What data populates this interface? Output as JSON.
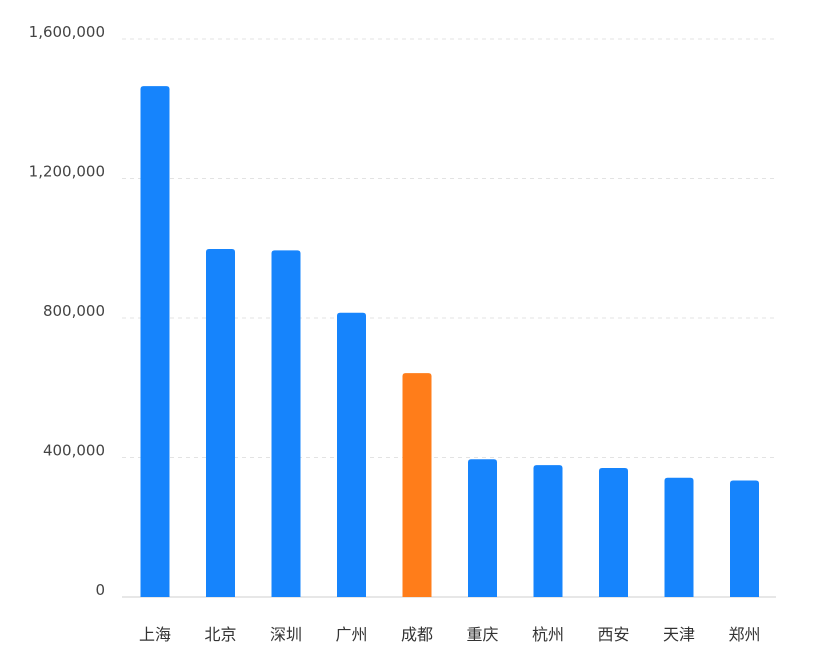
{
  "chart_data": {
    "type": "bar",
    "categories": [
      "上海",
      "北京",
      "深圳",
      "广州",
      "成都",
      "重庆",
      "杭州",
      "西安",
      "天津",
      "郑州"
    ],
    "values": [
      1465000,
      998000,
      994000,
      815000,
      642000,
      395000,
      378000,
      370000,
      342000,
      334000
    ],
    "ylim": [
      0,
      1600000
    ],
    "yticks": [
      0,
      400000,
      800000,
      1200000,
      1600000
    ],
    "ytick_labels": [
      "0",
      "400,000",
      "800,000",
      "1,200,000",
      "1,600,000"
    ],
    "grid": true,
    "legend": "none",
    "colors": {
      "default": "#1684FC",
      "highlight": "#FF7D1A",
      "highlight_index": 4
    }
  }
}
